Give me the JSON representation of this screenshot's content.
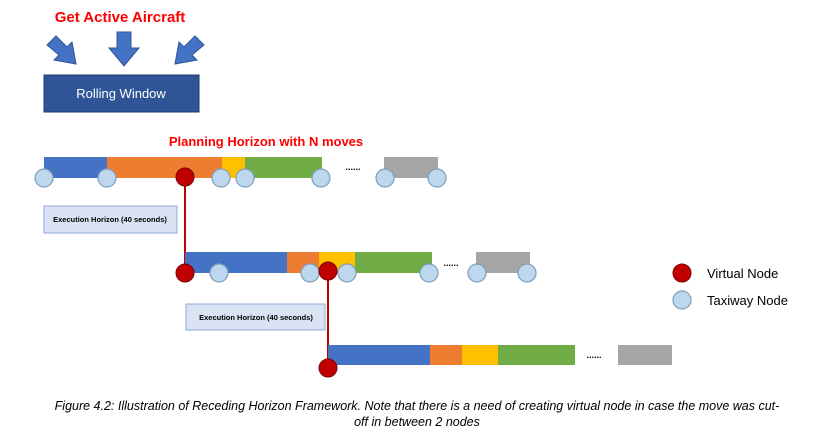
{
  "header": {
    "title": "Get Active Aircraft",
    "window_label": "Rolling Window"
  },
  "planning_horizon_label": "Planning Horizon with N moves",
  "execution_horizon_label": "Execution Horizon (40 seconds)",
  "ellipsis": "......",
  "legend": {
    "virtual_node_label": "Virtual Node",
    "taxiway_node_label": "Taxiway Node"
  },
  "caption": {
    "line1": "Figure 4.2: Illustration of Receding Horizon Framework. Note that there is a need of creating virtual node in case the move was cut-",
    "line2": "off in between 2 nodes"
  },
  "colors": {
    "title_red": "#ff0000",
    "window_box": "#2f5597",
    "arrow_blue": "#4472c4",
    "seg_blue": "#4472c4",
    "seg_orange": "#ed7d31",
    "seg_yellow": "#ffc000",
    "seg_green": "#70ad47",
    "seg_gray": "#a6a6a6",
    "virtual_node": "#c00000",
    "taxiway_node": "#bdd7ee",
    "exec_box_fill": "#dae3f3"
  }
}
